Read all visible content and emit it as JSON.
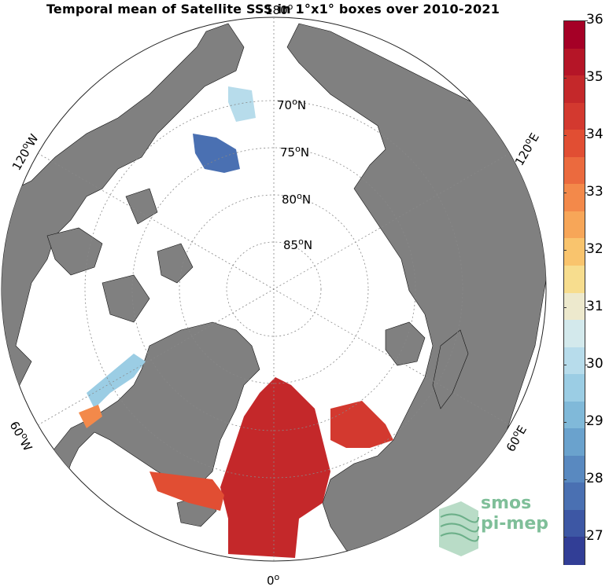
{
  "title": "Temporal mean of Satellite SSS in 1°x1° boxes over 2010-2021",
  "map": {
    "projection": "north-polar-stereographic",
    "land_color": "#808080",
    "ocean_color": "#ffffff",
    "lat_labels": [
      {
        "deg": "70",
        "sup": "o",
        "hemi": "N",
        "text_visible": "70"
      },
      {
        "deg": "75",
        "sup": "o",
        "hemi": "N"
      },
      {
        "deg": "80",
        "sup": "o",
        "hemi": "N"
      },
      {
        "deg": "85",
        "sup": "o",
        "hemi": "N"
      }
    ],
    "lon_labels": {
      "top": {
        "deg": "180",
        "sup": "o",
        "hemi": ""
      },
      "bottom": {
        "deg": "0",
        "sup": "o",
        "hemi": ""
      },
      "upper_left": {
        "deg": "120",
        "sup": "o",
        "hemi": "W"
      },
      "lower_left": {
        "deg": "60",
        "sup": "o",
        "hemi": "W"
      },
      "upper_right": {
        "deg": "120",
        "sup": "o",
        "hemi": "E"
      },
      "lower_right": {
        "deg": "60",
        "sup": "o",
        "hemi": "E"
      }
    }
  },
  "colorbar": {
    "min": 26.5,
    "max": 36,
    "ticks": [
      "36",
      "35",
      "34",
      "33",
      "32",
      "31",
      "30",
      "29",
      "28",
      "27"
    ],
    "colors": [
      "#a50026",
      "#b51527",
      "#c4282a",
      "#d3392f",
      "#e14e33",
      "#eb6a3e",
      "#f3894a",
      "#f7a658",
      "#f9c46d",
      "#f7dd8e",
      "#ede9cd",
      "#d3e9ec",
      "#b7dceb",
      "#9bcde4",
      "#80b9d9",
      "#6aa2cd",
      "#5989c0",
      "#4a70b2",
      "#3d57a4",
      "#323e96"
    ]
  },
  "logo": {
    "line1": "smos",
    "line2": "pi-mep",
    "color": "#7fbf99"
  }
}
